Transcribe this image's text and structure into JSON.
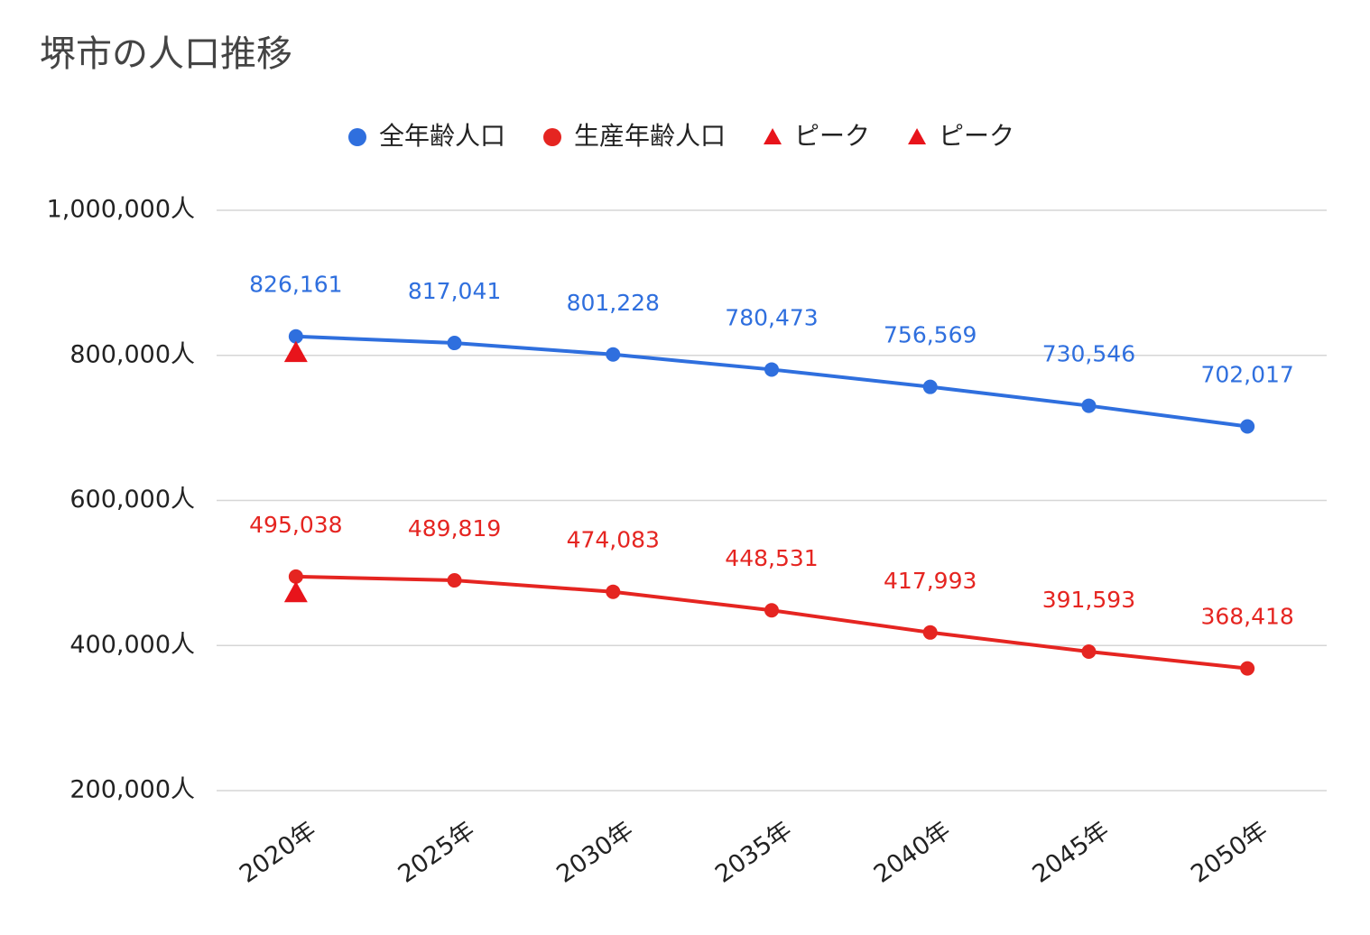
{
  "chart_data": {
    "type": "line",
    "title": "堺市の人口推移",
    "categories": [
      "2020年",
      "2025年",
      "2030年",
      "2035年",
      "2040年",
      "2045年",
      "2050年"
    ],
    "series": [
      {
        "name": "全年齢人口",
        "color": "#2f6fde",
        "marker": "circle",
        "values": [
          826161,
          817041,
          801228,
          780473,
          756569,
          730546,
          702017
        ],
        "value_labels": [
          "826,161",
          "817,041",
          "801,228",
          "780,473",
          "756,569",
          "730,546",
          "702,017"
        ]
      },
      {
        "name": "生産年齢人口",
        "color": "#e52521",
        "marker": "circle",
        "values": [
          495038,
          489819,
          474083,
          448531,
          417993,
          391593,
          368418
        ],
        "value_labels": [
          "495,038",
          "489,819",
          "474,083",
          "448,531",
          "417,993",
          "391,593",
          "368,418"
        ]
      },
      {
        "name": "ピーク",
        "color": "#e8141b",
        "marker": "triangle",
        "values": [
          826161,
          null,
          null,
          null,
          null,
          null,
          null
        ]
      },
      {
        "name": "ピーク",
        "color": "#e8141b",
        "marker": "triangle",
        "values": [
          495038,
          null,
          null,
          null,
          null,
          null,
          null
        ]
      }
    ],
    "ylim": [
      200000,
      1000000
    ],
    "yticks": [
      {
        "value": 200000,
        "label": "200,000人"
      },
      {
        "value": 400000,
        "label": "400,000人"
      },
      {
        "value": 600000,
        "label": "600,000人"
      },
      {
        "value": 800000,
        "label": "800,000人"
      },
      {
        "value": 1000000,
        "label": "1,000,000人"
      }
    ],
    "grid": true,
    "legend": "top"
  }
}
